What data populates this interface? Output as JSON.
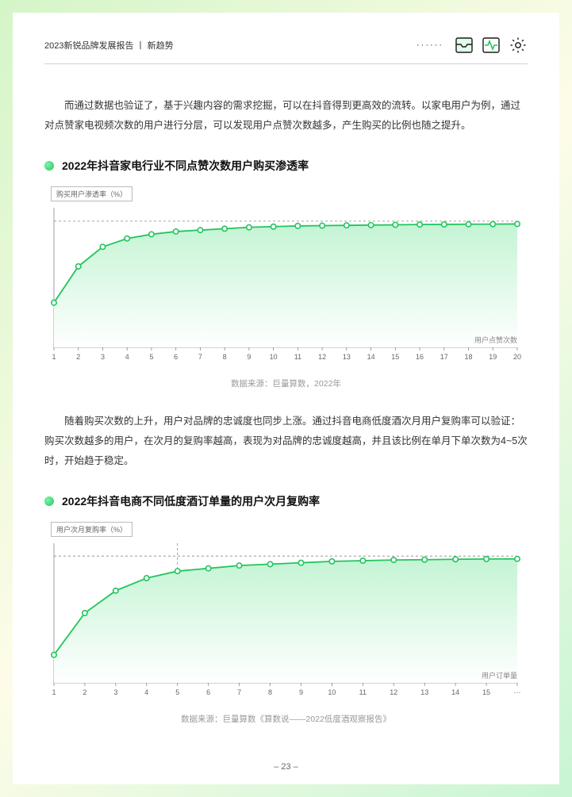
{
  "header": {
    "title": "2023新锐品牌发展报告 丨 新趋势",
    "dots": "······"
  },
  "para1": "而通过数据也验证了，基于兴趣内容的需求挖掘，可以在抖音得到更高效的流转。以家电用户为例，通过对点赞家电视频次数的用户进行分层，可以发现用户点赞次数越多，产生购买的比例也随之提升。",
  "chart1": {
    "type": "area-line",
    "title": "2022年抖音家电行业不同点赞次数用户购买渗透率",
    "y_label": "购买用户渗透率（%）",
    "x_label": "用户点赞次数",
    "x_ticks": [
      "1",
      "2",
      "3",
      "4",
      "5",
      "6",
      "7",
      "8",
      "9",
      "10",
      "11",
      "12",
      "13",
      "14",
      "15",
      "16",
      "17",
      "18",
      "19",
      "20"
    ],
    "y_values": [
      32,
      58,
      72,
      78,
      81,
      83,
      84,
      85,
      86,
      86.5,
      87,
      87.2,
      87.4,
      87.6,
      87.8,
      88,
      88.1,
      88.2,
      88.3,
      88.4
    ],
    "y_max": 100,
    "line_color": "#22c55e",
    "fill_top": "#c4f4d4",
    "fill_bottom": "#ffffff",
    "marker_fill": "#ffffff",
    "marker_stroke": "#22c55e",
    "grid_color": "#888",
    "source": "数据来源：巨量算数，2022年"
  },
  "para2": "随着购买次数的上升，用户对品牌的忠诚度也同步上涨。通过抖音电商低度酒次月用户复购率可以验证：购买次数越多的用户，在次月的复购率越高，表现为对品牌的忠诚度越高，并且该比例在单月下单次数为4~5次时，开始趋于稳定。",
  "chart2": {
    "type": "area-line",
    "title": "2022年抖音电商不同低度酒订单量的用户次月复购率",
    "y_label": "用户次月复购率（%）",
    "x_label": "用户订单量",
    "x_ticks": [
      "1",
      "2",
      "3",
      "4",
      "5",
      "6",
      "7",
      "8",
      "9",
      "10",
      "11",
      "12",
      "13",
      "14",
      "15",
      "···"
    ],
    "y_values": [
      20,
      50,
      66,
      75,
      80,
      82,
      84,
      85,
      86,
      87,
      87.5,
      88,
      88.2,
      88.5,
      88.7,
      88.8
    ],
    "y_max": 100,
    "vline_at_index": 4,
    "line_color": "#22c55e",
    "fill_top": "#c4f4d4",
    "fill_bottom": "#ffffff",
    "marker_fill": "#ffffff",
    "marker_stroke": "#22c55e",
    "grid_color": "#888",
    "source": "数据来源：巨量算数《算数说——2022低度酒观察报告》"
  },
  "page_number": "– 23 –"
}
